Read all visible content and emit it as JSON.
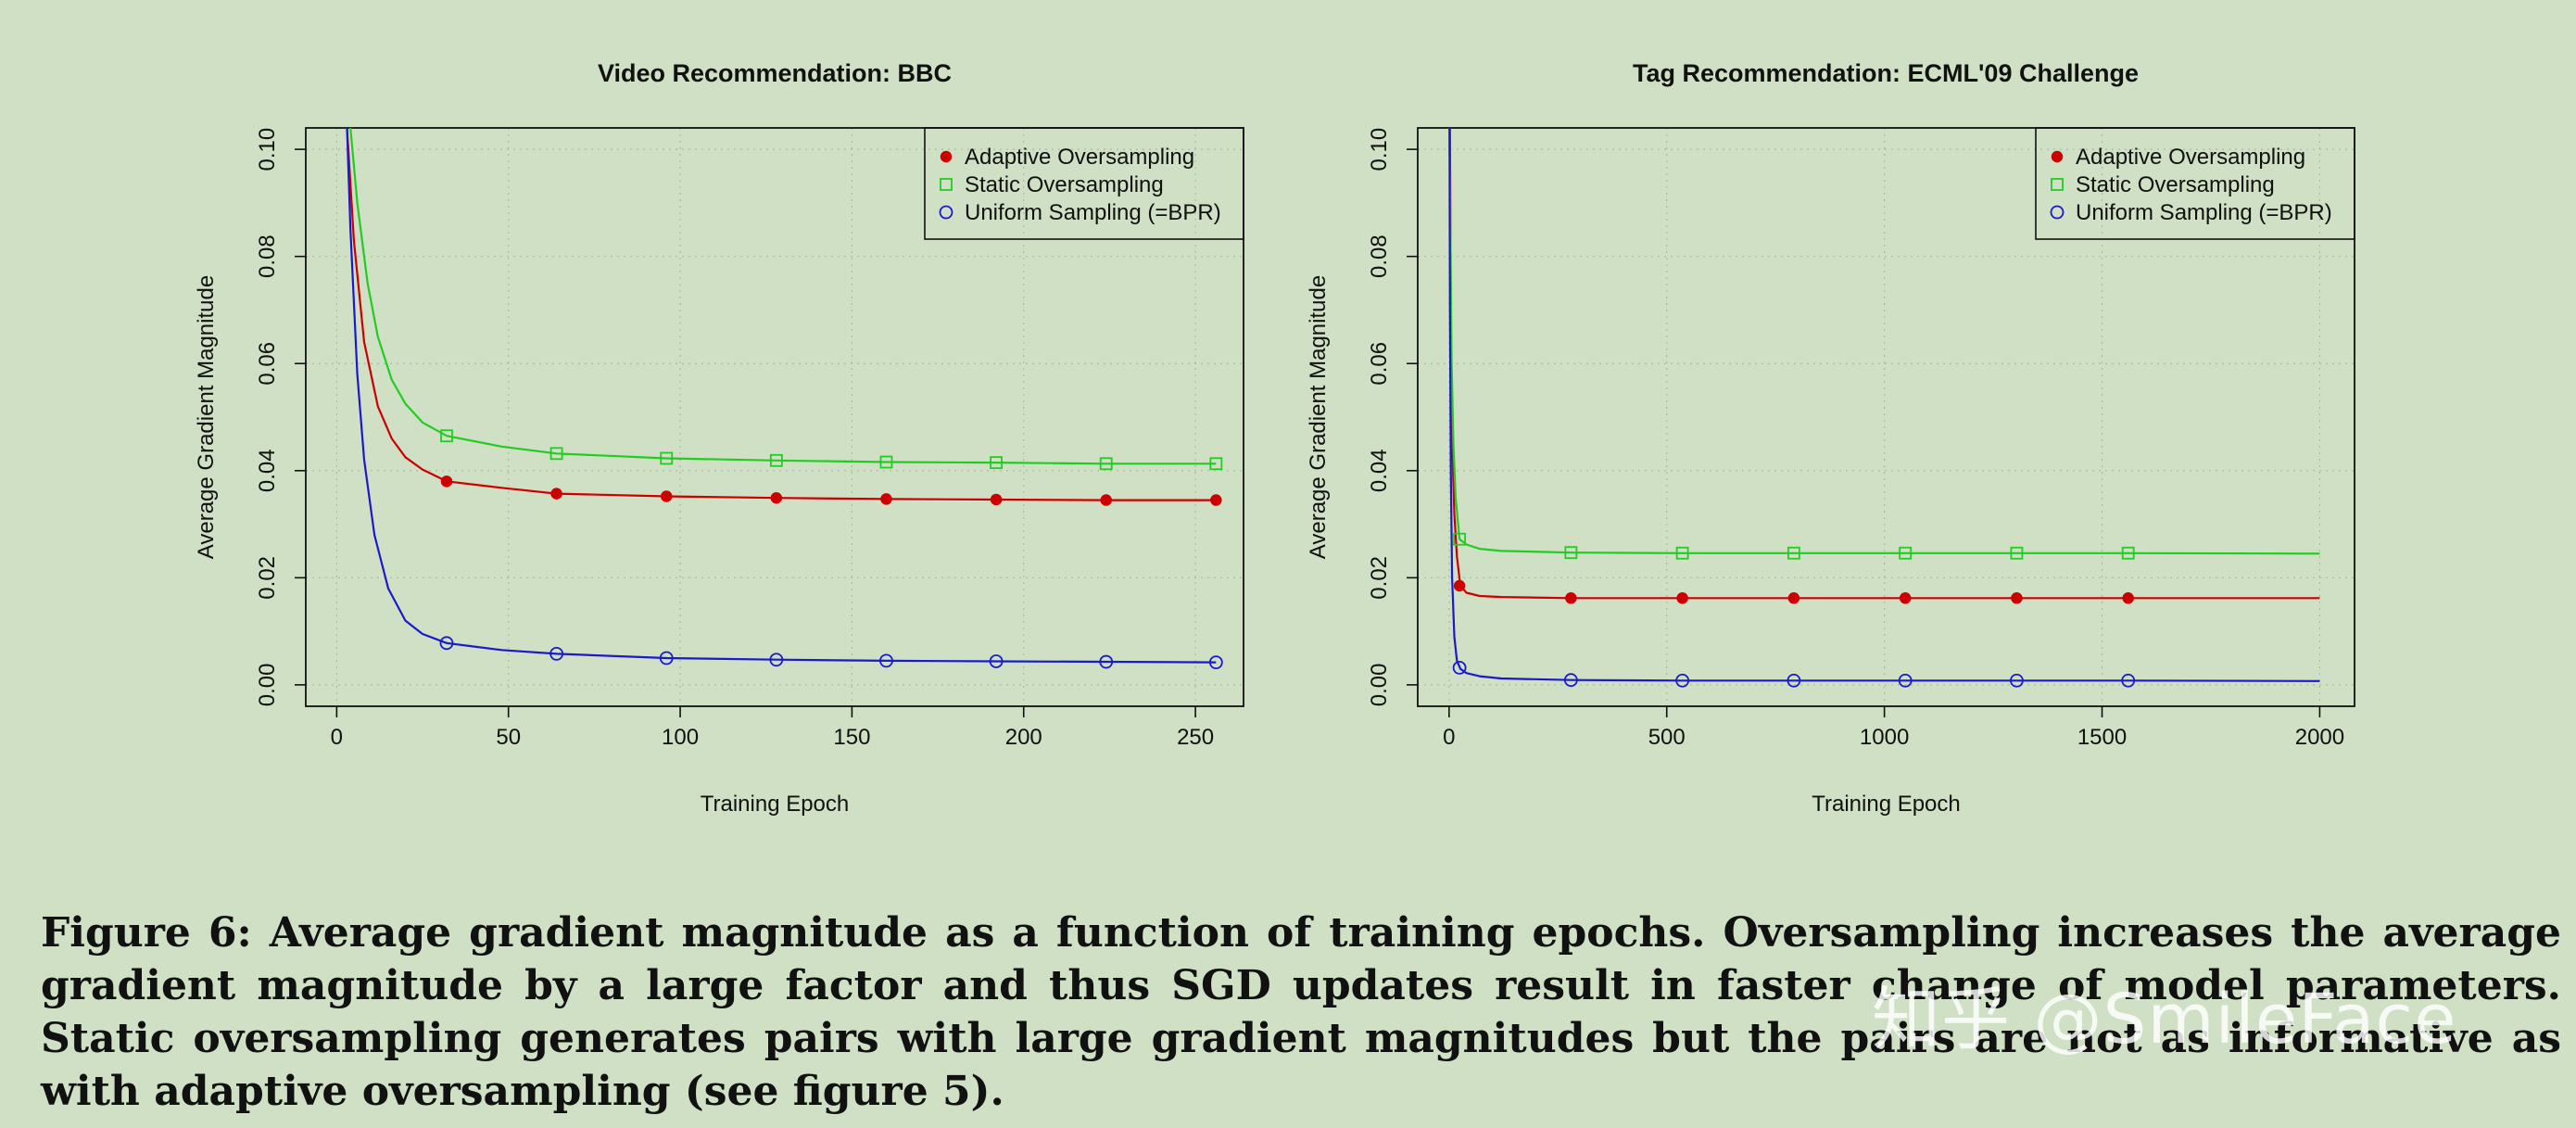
{
  "caption": {
    "text": "Figure 6: Average gradient magnitude as a function of training epochs. Oversampling increases the average gradient magnitude by a large factor and thus SGD updates result in faster change of model parameters. Static oversampling generates pairs with large gradient magnitudes but the pairs are not as informative as with adaptive oversampling (see figure 5)."
  },
  "watermark": {
    "text": "知乎 @SmileFace"
  },
  "colors": {
    "background": "#cfe0c4",
    "adaptive": "#cc0000",
    "static": "#22cc22",
    "uniform": "#1a1acc",
    "grid": "#a9bca0"
  },
  "chart_data": [
    {
      "type": "line",
      "title": "Video Recommendation: BBC",
      "xlabel": "Training Epoch",
      "ylabel": "Average Gradient Magnitude",
      "xlim": [
        -9,
        264
      ],
      "ylim": [
        -0.004,
        0.104
      ],
      "xticks": [
        0,
        50,
        100,
        150,
        200,
        250
      ],
      "yticks": [
        0.0,
        0.02,
        0.04,
        0.06,
        0.08,
        0.1
      ],
      "ytick_labels": [
        "0.00",
        "0.02",
        "0.04",
        "0.06",
        "0.08",
        "0.10"
      ],
      "grid": true,
      "legend": "top-right",
      "series": [
        {
          "name": "Adaptive Oversampling",
          "color": "#cc0000",
          "marker": "filled-circle",
          "x": [
            3,
            5,
            8,
            12,
            16,
            20,
            25,
            32,
            48,
            64,
            96,
            128,
            160,
            192,
            224,
            256
          ],
          "y": [
            0.104,
            0.083,
            0.064,
            0.052,
            0.046,
            0.0425,
            0.0402,
            0.038,
            0.0368,
            0.0357,
            0.0352,
            0.0349,
            0.0347,
            0.0346,
            0.0345,
            0.0345
          ],
          "marker_x": [
            32,
            64,
            96,
            128,
            160,
            192,
            224,
            256
          ],
          "marker_y": [
            0.038,
            0.0357,
            0.0352,
            0.0349,
            0.0347,
            0.0346,
            0.0345,
            0.0345
          ]
        },
        {
          "name": "Static Oversampling",
          "color": "#22cc22",
          "marker": "open-square",
          "x": [
            4,
            6,
            9,
            12,
            16,
            20,
            25,
            32,
            48,
            64,
            96,
            128,
            160,
            192,
            224,
            256
          ],
          "y": [
            0.104,
            0.09,
            0.075,
            0.065,
            0.057,
            0.0525,
            0.049,
            0.0465,
            0.0445,
            0.0432,
            0.0423,
            0.0419,
            0.0416,
            0.0415,
            0.0413,
            0.0413
          ],
          "marker_x": [
            32,
            64,
            96,
            128,
            160,
            192,
            224,
            256
          ],
          "marker_y": [
            0.0465,
            0.0432,
            0.0423,
            0.0419,
            0.0416,
            0.0415,
            0.0413,
            0.0413
          ]
        },
        {
          "name": "Uniform Sampling (=BPR)",
          "color": "#1a1acc",
          "marker": "open-circle",
          "x": [
            3,
            4,
            6,
            8,
            11,
            15,
            20,
            25,
            32,
            48,
            64,
            96,
            128,
            160,
            192,
            224,
            256
          ],
          "y": [
            0.104,
            0.085,
            0.058,
            0.042,
            0.028,
            0.018,
            0.012,
            0.0095,
            0.0078,
            0.0065,
            0.0058,
            0.005,
            0.0047,
            0.0045,
            0.0044,
            0.0043,
            0.0042
          ],
          "marker_x": [
            32,
            64,
            96,
            128,
            160,
            192,
            224,
            256
          ],
          "marker_y": [
            0.0078,
            0.0058,
            0.005,
            0.0047,
            0.0045,
            0.0044,
            0.0043,
            0.0042
          ]
        }
      ]
    },
    {
      "type": "line",
      "title": "Tag Recommendation: ECML'09 Challenge",
      "xlabel": "Training Epoch",
      "ylabel": "Average Gradient Magnitude",
      "xlim": [
        -72,
        2080
      ],
      "ylim": [
        -0.004,
        0.104
      ],
      "xticks": [
        0,
        500,
        1000,
        1500,
        2000
      ],
      "yticks": [
        0.0,
        0.02,
        0.04,
        0.06,
        0.08,
        0.1
      ],
      "ytick_labels": [
        "0.00",
        "0.02",
        "0.04",
        "0.06",
        "0.08",
        "0.10"
      ],
      "grid": true,
      "legend": "top-right",
      "series": [
        {
          "name": "Adaptive Oversampling",
          "color": "#cc0000",
          "marker": "filled-circle",
          "x": [
            2,
            4,
            7,
            12,
            18,
            26,
            40,
            70,
            120,
            280,
            536,
            792,
            1048,
            1304,
            1560,
            2000
          ],
          "y": [
            0.104,
            0.07,
            0.045,
            0.032,
            0.024,
            0.0185,
            0.0172,
            0.0166,
            0.0164,
            0.0162,
            0.0162,
            0.0162,
            0.0162,
            0.0162,
            0.0162,
            0.0162
          ],
          "marker_x": [
            24,
            280,
            536,
            792,
            1048,
            1304,
            1560
          ],
          "marker_y": [
            0.0185,
            0.0162,
            0.0162,
            0.0162,
            0.0162,
            0.0162,
            0.0162
          ]
        },
        {
          "name": "Static Oversampling",
          "color": "#22cc22",
          "marker": "open-square",
          "x": [
            1,
            3,
            6,
            10,
            15,
            24,
            40,
            70,
            120,
            280,
            536,
            792,
            1048,
            1304,
            1560,
            2000
          ],
          "y": [
            0.104,
            0.085,
            0.06,
            0.045,
            0.035,
            0.0272,
            0.0262,
            0.0254,
            0.025,
            0.0247,
            0.0246,
            0.0246,
            0.0246,
            0.0246,
            0.0246,
            0.0245
          ],
          "marker_x": [
            24,
            280,
            536,
            792,
            1048,
            1304,
            1560
          ],
          "marker_y": [
            0.0272,
            0.0247,
            0.0246,
            0.0246,
            0.0246,
            0.0246,
            0.0246
          ]
        },
        {
          "name": "Uniform Sampling (=BPR)",
          "color": "#1a1acc",
          "marker": "open-circle",
          "x": [
            1,
            2,
            4,
            7,
            12,
            18,
            26,
            40,
            70,
            120,
            280,
            536,
            792,
            1048,
            1304,
            1560,
            2000
          ],
          "y": [
            0.104,
            0.07,
            0.04,
            0.02,
            0.009,
            0.0045,
            0.003,
            0.0022,
            0.0016,
            0.0012,
            0.0009,
            0.0008,
            0.0008,
            0.0008,
            0.0008,
            0.0008,
            0.0007
          ],
          "marker_x": [
            24,
            280,
            536,
            792,
            1048,
            1304,
            1560
          ],
          "marker_y": [
            0.0032,
            0.0009,
            0.0008,
            0.0008,
            0.0008,
            0.0008,
            0.0008
          ]
        }
      ]
    }
  ]
}
